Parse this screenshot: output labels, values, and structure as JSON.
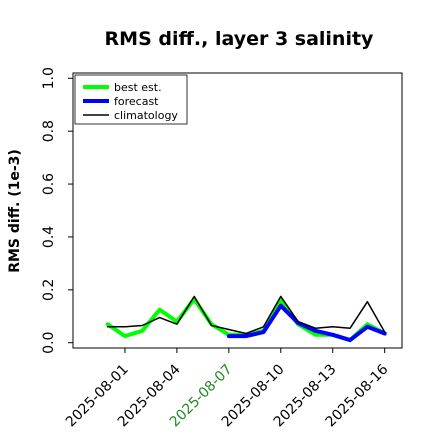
{
  "chart_data": {
    "type": "line",
    "title": "RMS diff., layer 3 salinity",
    "xlabel": "",
    "ylabel": "RMS diff. (1e-3)",
    "ylim": [
      -0.02,
      1.02
    ],
    "yticks": [
      0.0,
      0.2,
      0.4,
      0.6,
      0.8,
      1.0
    ],
    "ytick_labels": [
      "0.0",
      "0.2",
      "0.4",
      "0.6",
      "0.8",
      "1.0"
    ],
    "x_dates": [
      "2025-07-31",
      "2025-08-01",
      "2025-08-02",
      "2025-08-03",
      "2025-08-04",
      "2025-08-05",
      "2025-08-06",
      "2025-08-07",
      "2025-08-08",
      "2025-08-09",
      "2025-08-10",
      "2025-08-11",
      "2025-08-12",
      "2025-08-13",
      "2025-08-14",
      "2025-08-15",
      "2025-08-16"
    ],
    "xlim": [
      "2025-07-29",
      "2025-08-17"
    ],
    "xticks": [
      "2025-08-01",
      "2025-08-04",
      "2025-08-07",
      "2025-08-10",
      "2025-08-13",
      "2025-08-16"
    ],
    "xtick_labels": [
      "2025-08-01",
      "2025-08-04",
      "2025-08-07",
      "2025-08-10",
      "2025-08-13",
      "2025-08-16"
    ],
    "xtick_colors": [
      "#000000",
      "#000000",
      "#228b22",
      "#000000",
      "#000000",
      "#000000"
    ],
    "grid": false,
    "legend_position": "top-left",
    "series": [
      {
        "name": "best est.",
        "color": "#00ff00",
        "width": 4,
        "values": [
          0.07,
          0.025,
          0.045,
          0.125,
          0.08,
          0.165,
          0.07,
          0.03,
          0.03,
          0.045,
          0.16,
          0.07,
          0.03,
          0.03,
          0.01,
          0.07,
          0.035
        ]
      },
      {
        "name": "forecast",
        "color": "#0000ff",
        "width": 4,
        "values": [
          null,
          null,
          null,
          null,
          null,
          null,
          null,
          0.025,
          0.025,
          0.04,
          0.14,
          0.075,
          0.045,
          0.03,
          0.01,
          0.06,
          0.035
        ]
      },
      {
        "name": "climatology",
        "color": "#000000",
        "width": 1.5,
        "values": [
          0.06,
          0.06,
          0.065,
          0.095,
          0.07,
          0.175,
          0.065,
          0.05,
          0.035,
          0.06,
          0.175,
          0.08,
          0.055,
          0.06,
          0.055,
          0.155,
          0.04
        ]
      }
    ]
  }
}
